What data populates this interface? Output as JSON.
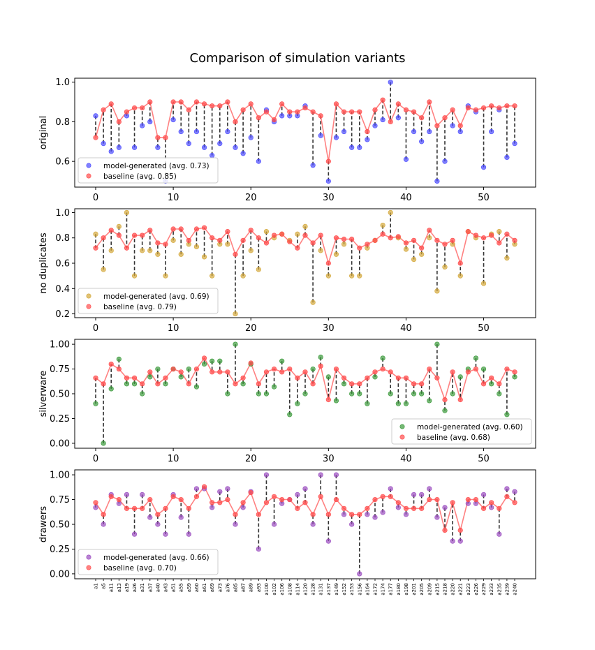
{
  "chart_data": {
    "type": "scatter",
    "title": "Comparison of simulation variants",
    "x_categories": [
      "a1",
      "a5",
      "a11",
      "a13",
      "a19",
      "a26",
      "a31",
      "a37",
      "a40",
      "a43",
      "a51",
      "a55",
      "a59",
      "a60",
      "a61",
      "a69",
      "a73",
      "a76",
      "a85",
      "a87",
      "a89",
      "a93",
      "a100",
      "a102",
      "a106",
      "a108",
      "a114",
      "a120",
      "a128",
      "a131",
      "a137",
      "a149",
      "a152",
      "a153",
      "a156",
      "a164",
      "a172",
      "a174",
      "a177",
      "a180",
      "a198",
      "a201",
      "a205",
      "a209",
      "a215",
      "a218",
      "a220",
      "a221",
      "a223",
      "a226",
      "a229",
      "a233",
      "a235",
      "a239",
      "a240"
    ],
    "panels": [
      {
        "ylabel": "original",
        "ylim": [
          0.47,
          1.02
        ],
        "yticks": [
          0.6,
          0.8,
          1.0
        ],
        "yticklabels": [
          "0.6",
          "0.8",
          "1.0"
        ],
        "xticklabels": [
          "0",
          "10",
          "20",
          "30",
          "40",
          "50"
        ],
        "legend_loc": "lower left",
        "model_color": "#4a4aff",
        "legend": [
          "model-generated (avg. 0.73)",
          "baseline (avg. 0.85)"
        ],
        "model": [
          0.83,
          0.69,
          0.65,
          0.67,
          0.83,
          0.67,
          0.78,
          0.8,
          0.67,
          0.5,
          0.81,
          0.75,
          0.69,
          0.75,
          0.67,
          0.63,
          0.69,
          0.75,
          0.67,
          0.64,
          0.72,
          0.6,
          0.86,
          0.8,
          0.83,
          0.83,
          0.83,
          0.88,
          0.58,
          0.73,
          0.5,
          0.72,
          0.75,
          0.67,
          0.67,
          0.71,
          0.78,
          0.81,
          1.0,
          0.82,
          0.61,
          0.75,
          0.7,
          0.75,
          0.5,
          0.6,
          0.78,
          0.75,
          0.88,
          0.85,
          0.57,
          0.75,
          0.86,
          0.62,
          0.69
        ],
        "baseline": [
          0.72,
          0.86,
          0.89,
          0.8,
          0.85,
          0.87,
          0.87,
          0.9,
          0.72,
          0.72,
          0.9,
          0.9,
          0.86,
          0.9,
          0.89,
          0.88,
          0.88,
          0.9,
          0.8,
          0.86,
          0.89,
          0.82,
          0.85,
          0.81,
          0.89,
          0.85,
          0.85,
          0.87,
          0.85,
          0.83,
          0.6,
          0.89,
          0.85,
          0.85,
          0.85,
          0.75,
          0.86,
          0.91,
          0.8,
          0.89,
          0.86,
          0.85,
          0.82,
          0.9,
          0.78,
          0.82,
          0.86,
          0.78,
          0.87,
          0.86,
          0.87,
          0.88,
          0.87,
          0.88,
          0.88
        ]
      },
      {
        "ylabel": "no duplicates",
        "ylim": [
          0.17,
          1.03
        ],
        "yticks": [
          0.2,
          0.4,
          0.6,
          0.8,
          1.0
        ],
        "yticklabels": [
          "0.2",
          "0.4",
          "0.6",
          "0.8",
          "1.0"
        ],
        "xticklabels": [
          "0",
          "10",
          "20",
          "30",
          "40",
          "50"
        ],
        "legend_loc": "lower left",
        "model_color": "#d4a83a",
        "legend": [
          "model-generated (avg. 0.69)",
          "baseline (avg. 0.79)"
        ],
        "model": [
          0.83,
          0.55,
          0.7,
          0.89,
          1.0,
          0.5,
          0.7,
          0.7,
          0.67,
          0.5,
          0.78,
          0.67,
          0.75,
          0.73,
          0.65,
          0.5,
          0.75,
          0.75,
          0.2,
          0.5,
          0.7,
          0.55,
          0.85,
          0.8,
          0.83,
          0.78,
          0.83,
          0.89,
          0.29,
          0.7,
          0.5,
          0.67,
          0.75,
          0.5,
          0.5,
          0.72,
          0.78,
          0.9,
          1.0,
          0.8,
          0.71,
          0.63,
          0.67,
          0.8,
          0.38,
          0.57,
          0.75,
          0.5,
          0.85,
          0.8,
          0.44,
          0.83,
          0.85,
          0.64,
          0.75
        ],
        "baseline": [
          0.72,
          0.8,
          0.86,
          0.82,
          0.72,
          0.82,
          0.82,
          0.86,
          0.76,
          0.75,
          0.87,
          0.87,
          0.78,
          0.87,
          0.88,
          0.8,
          0.78,
          0.85,
          0.67,
          0.78,
          0.86,
          0.8,
          0.76,
          0.82,
          0.83,
          0.77,
          0.72,
          0.82,
          0.76,
          0.82,
          0.6,
          0.8,
          0.79,
          0.79,
          0.72,
          0.75,
          0.78,
          0.83,
          0.8,
          0.81,
          0.76,
          0.78,
          0.72,
          0.86,
          0.78,
          0.75,
          0.78,
          0.6,
          0.85,
          0.82,
          0.8,
          0.82,
          0.76,
          0.83,
          0.78
        ]
      },
      {
        "ylabel": "silverware",
        "ylim": [
          -0.05,
          1.05
        ],
        "yticks": [
          0.0,
          0.25,
          0.5,
          0.75,
          1.0
        ],
        "yticklabels": [
          "0.00",
          "0.25",
          "0.50",
          "0.75",
          "1.00"
        ],
        "xticklabels": [
          "0",
          "10",
          "20",
          "30",
          "40",
          "50"
        ],
        "legend_loc": "lower right",
        "model_color": "#3a9a3a",
        "legend": [
          "model-generated (avg. 0.60)",
          "baseline (avg. 0.68)"
        ],
        "model": [
          0.4,
          0.0,
          0.55,
          0.85,
          0.6,
          0.6,
          0.5,
          0.67,
          0.75,
          0.6,
          0.75,
          0.67,
          0.75,
          0.57,
          0.8,
          0.83,
          0.83,
          0.5,
          1.0,
          0.6,
          0.8,
          0.5,
          0.5,
          0.57,
          0.83,
          0.29,
          0.4,
          0.5,
          0.75,
          0.87,
          0.67,
          0.43,
          0.6,
          0.5,
          0.5,
          0.4,
          0.67,
          0.86,
          0.5,
          0.4,
          0.4,
          0.5,
          0.5,
          0.43,
          1.0,
          0.33,
          0.5,
          0.67,
          0.75,
          0.86,
          0.75,
          0.6,
          0.5,
          0.29,
          0.67
        ],
        "baseline": [
          0.66,
          0.6,
          0.8,
          0.75,
          0.66,
          0.66,
          0.6,
          0.72,
          0.6,
          0.66,
          0.75,
          0.72,
          0.6,
          0.75,
          0.86,
          0.72,
          0.72,
          0.72,
          0.6,
          0.66,
          0.81,
          0.6,
          0.72,
          0.75,
          0.72,
          0.75,
          0.66,
          0.72,
          0.6,
          0.78,
          0.44,
          0.75,
          0.66,
          0.6,
          0.6,
          0.66,
          0.72,
          0.75,
          0.72,
          0.66,
          0.66,
          0.6,
          0.6,
          0.75,
          0.66,
          0.44,
          0.72,
          0.44,
          0.72,
          0.75,
          0.6,
          0.66,
          0.6,
          0.75,
          0.72
        ]
      },
      {
        "ylabel": "drawers",
        "ylim": [
          -0.05,
          1.05
        ],
        "yticks": [
          0.0,
          0.25,
          0.5,
          0.75,
          1.0
        ],
        "yticklabels": [
          "0.00",
          "0.25",
          "0.50",
          "0.75",
          "1.00"
        ],
        "xticklabels_show_categories": true,
        "legend_loc": "lower left",
        "model_color": "#9b4dc0",
        "legend": [
          "model-generated (avg. 0.66)",
          "baseline (avg. 0.70)"
        ],
        "model": [
          0.67,
          0.5,
          0.8,
          0.71,
          0.8,
          0.4,
          0.8,
          0.57,
          0.5,
          0.4,
          0.8,
          0.57,
          0.4,
          0.86,
          0.86,
          0.67,
          0.83,
          0.86,
          0.5,
          0.67,
          0.83,
          0.25,
          1.0,
          0.5,
          0.71,
          0.75,
          0.8,
          0.86,
          0.5,
          1.0,
          0.33,
          1.0,
          0.6,
          0.5,
          0.0,
          0.6,
          0.57,
          0.62,
          0.86,
          0.67,
          0.6,
          0.8,
          0.8,
          0.86,
          0.57,
          0.67,
          0.33,
          0.33,
          0.71,
          0.71,
          0.8,
          0.67,
          0.4,
          0.86,
          0.83
        ],
        "baseline": [
          0.72,
          0.6,
          0.78,
          0.75,
          0.66,
          0.66,
          0.66,
          0.75,
          0.6,
          0.66,
          0.78,
          0.75,
          0.66,
          0.78,
          0.88,
          0.72,
          0.72,
          0.75,
          0.6,
          0.72,
          0.82,
          0.6,
          0.72,
          0.78,
          0.75,
          0.75,
          0.66,
          0.72,
          0.6,
          0.78,
          0.6,
          0.75,
          0.66,
          0.6,
          0.6,
          0.66,
          0.75,
          0.78,
          0.78,
          0.72,
          0.66,
          0.66,
          0.66,
          0.75,
          0.75,
          0.44,
          0.72,
          0.44,
          0.75,
          0.75,
          0.66,
          0.72,
          0.66,
          0.78,
          0.72
        ]
      }
    ],
    "baseline_color": "#ff4d4d"
  }
}
